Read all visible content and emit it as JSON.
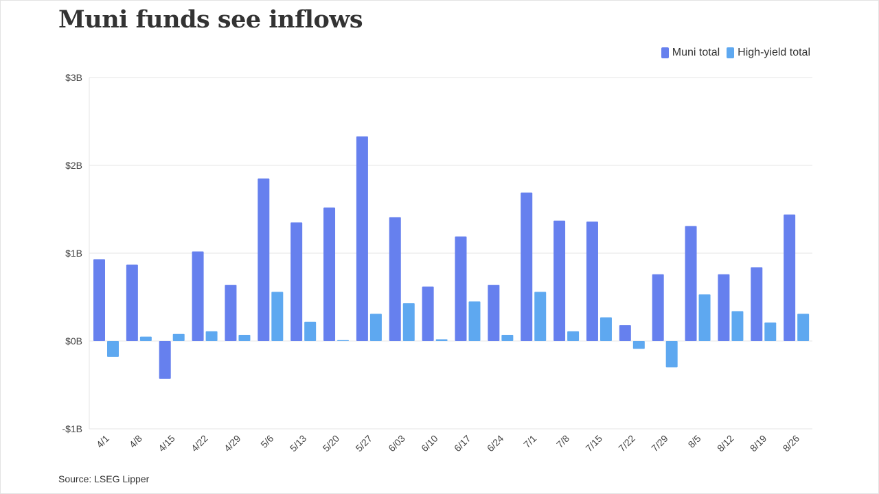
{
  "title": "Muni funds see inflows",
  "source": "Source: LSEG Lipper",
  "colors": {
    "muni": "#6680ee",
    "high_yield": "#5ea8f0",
    "grid": "#e6e6e6"
  },
  "chart_data": {
    "type": "bar",
    "title": "Muni funds see inflows",
    "xlabel": "",
    "ylabel": "",
    "ylim": [
      -1,
      3
    ],
    "unit": "billions of dollars",
    "grid": true,
    "legend_position": "top-right",
    "y_ticks": [
      {
        "value": 3,
        "label": "$3B"
      },
      {
        "value": 2,
        "label": "$2B"
      },
      {
        "value": 1,
        "label": "$1B"
      },
      {
        "value": 0,
        "label": "$0B"
      },
      {
        "value": -1,
        "label": "-$1B"
      }
    ],
    "categories": [
      "4/1",
      "4/8",
      "4/15",
      "4/22",
      "4/29",
      "5/6",
      "5/13",
      "5/20",
      "5/27",
      "6/03",
      "6/10",
      "6/17",
      "6/24",
      "7/1",
      "7/8",
      "7/15",
      "7/22",
      "7/29",
      "8/5",
      "8/12",
      "8/19",
      "8/26"
    ],
    "series": [
      {
        "name": "Muni total",
        "color": "#6680ee",
        "values": [
          0.93,
          0.87,
          -0.43,
          1.02,
          0.64,
          1.85,
          1.35,
          1.52,
          2.33,
          1.41,
          0.62,
          1.19,
          0.64,
          1.69,
          1.37,
          1.36,
          0.18,
          0.76,
          1.31,
          0.76,
          0.84,
          1.44
        ]
      },
      {
        "name": "High-yield total",
        "color": "#5ea8f0",
        "values": [
          -0.18,
          0.05,
          0.08,
          0.11,
          0.07,
          0.56,
          0.22,
          0.01,
          0.31,
          0.43,
          0.02,
          0.45,
          0.07,
          0.56,
          0.11,
          0.27,
          -0.09,
          -0.3,
          0.53,
          0.34,
          0.21,
          0.31
        ]
      }
    ]
  }
}
